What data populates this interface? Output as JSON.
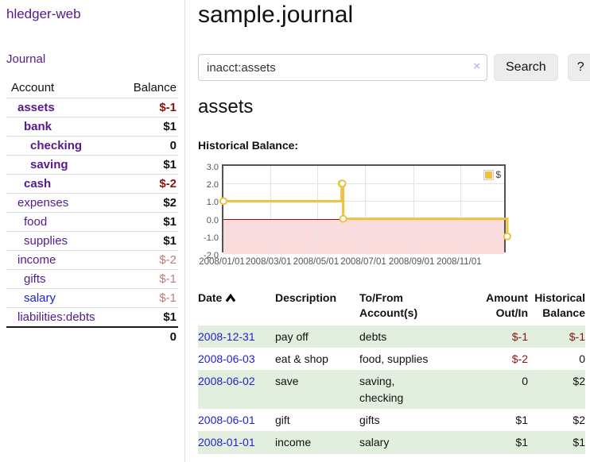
{
  "sidebar": {
    "brand": "hledger-web",
    "journal_label": "Journal",
    "accounts": {
      "headers": [
        "Account",
        "Balance"
      ],
      "rows": [
        {
          "name": "assets",
          "indent": 1,
          "balance": "$-1",
          "link_cls": "b",
          "bal_cls": "neg"
        },
        {
          "name": "bank",
          "indent": 2,
          "balance": "$1",
          "link_cls": "b",
          "bal_cls": ""
        },
        {
          "name": "checking",
          "indent": 3,
          "balance": "0",
          "link_cls": "b",
          "bal_cls": ""
        },
        {
          "name": "saving",
          "indent": 3,
          "balance": "$1",
          "link_cls": "b",
          "bal_cls": ""
        },
        {
          "name": "cash",
          "indent": 2,
          "balance": "$-2",
          "link_cls": "b",
          "bal_cls": "neg"
        },
        {
          "name": "expenses",
          "indent": 1,
          "balance": "$2",
          "link_cls": "",
          "bal_cls": ""
        },
        {
          "name": "food",
          "indent": 2,
          "balance": "$1",
          "link_cls": "",
          "bal_cls": ""
        },
        {
          "name": "supplies",
          "indent": 2,
          "balance": "$1",
          "link_cls": "",
          "bal_cls": ""
        },
        {
          "name": "income",
          "indent": 1,
          "balance": "$-2",
          "link_cls": "",
          "bal_cls": "negm"
        },
        {
          "name": "gifts",
          "indent": 2,
          "balance": "$-1",
          "link_cls": "",
          "bal_cls": "negm"
        },
        {
          "name": "salary",
          "indent": 2,
          "balance": "$-1",
          "link_cls": "blue",
          "bal_cls": "negm"
        },
        {
          "name": "liabilities:debts",
          "indent": 1,
          "balance": "$1",
          "link_cls": "",
          "bal_cls": ""
        }
      ],
      "total": "0"
    }
  },
  "main": {
    "title": "sample.journal",
    "search": {
      "value": "inacct:assets",
      "clear_icon": "×",
      "button_label": "Search",
      "help_label": "?"
    },
    "account_heading": "assets",
    "chart_heading": "Historical Balance:"
  },
  "chart_data": {
    "type": "line",
    "title": "Historical Balance",
    "step": true,
    "series": [
      {
        "name": "$",
        "color": "#edc240",
        "dates": [
          "2008-01-01",
          "2008-06-01",
          "2008-06-02",
          "2008-06-03",
          "2008-12-31"
        ],
        "points": [
          [
            0,
            1
          ],
          [
            152,
            2
          ],
          [
            153,
            2
          ],
          [
            154,
            0
          ],
          [
            365,
            -1
          ]
        ]
      }
    ],
    "xlim": [
      0,
      365
    ],
    "ylim": [
      -2,
      3
    ],
    "x_ticks": [
      {
        "pos": 0,
        "label": "2008/01/01"
      },
      {
        "pos": 60,
        "label": "2008/03/01"
      },
      {
        "pos": 121,
        "label": "2008/05/01"
      },
      {
        "pos": 182,
        "label": "2008/07/01"
      },
      {
        "pos": 244,
        "label": "2008/09/01"
      },
      {
        "pos": 305,
        "label": "2008/11/01"
      }
    ],
    "y_ticks": [
      {
        "val": 3,
        "label": "3.0"
      },
      {
        "val": 2,
        "label": "2.0"
      },
      {
        "val": 1,
        "label": "1.0"
      },
      {
        "val": 0,
        "label": "0.0"
      },
      {
        "val": -1,
        "label": "-1.0"
      },
      {
        "val": -2,
        "label": "-2.0"
      }
    ],
    "legend": {
      "label": "$",
      "position": "top-right"
    },
    "colors": {
      "line": "#edc240",
      "marker_fill": "#ffffff",
      "grid": "#e3e3e3",
      "border": "#545454",
      "zero_line": "#8b1010",
      "negative_fill": "#fadcdc",
      "tick_text": "#545454"
    }
  },
  "register": {
    "headers": {
      "date": "Date",
      "description": "Description",
      "accounts": "To/From Account(s)",
      "amount": "Amount Out/In",
      "balance": "Historical Balance"
    },
    "rows": [
      {
        "date": "2008-12-31",
        "description": "pay off",
        "accounts": "debts",
        "amount": "$-1",
        "amount_neg": true,
        "balance": "$-1",
        "balance_neg": true,
        "shaded": true
      },
      {
        "date": "2008-06-03",
        "description": "eat & shop",
        "accounts": "food, supplies",
        "amount": "$-2",
        "amount_neg": true,
        "balance": "0",
        "balance_neg": false,
        "shaded": false
      },
      {
        "date": "2008-06-02",
        "description": "save",
        "accounts": "saving,\nchecking",
        "amount": "0",
        "amount_neg": false,
        "balance": "$2",
        "balance_neg": false,
        "shaded": true
      },
      {
        "date": "2008-06-01",
        "description": "gift",
        "accounts": "gifts",
        "amount": "$1",
        "amount_neg": false,
        "balance": "$2",
        "balance_neg": false,
        "shaded": false
      },
      {
        "date": "2008-01-01",
        "description": "income",
        "accounts": "salary",
        "amount": "$1",
        "amount_neg": false,
        "balance": "$1",
        "balance_neg": false,
        "shaded": true
      }
    ]
  }
}
